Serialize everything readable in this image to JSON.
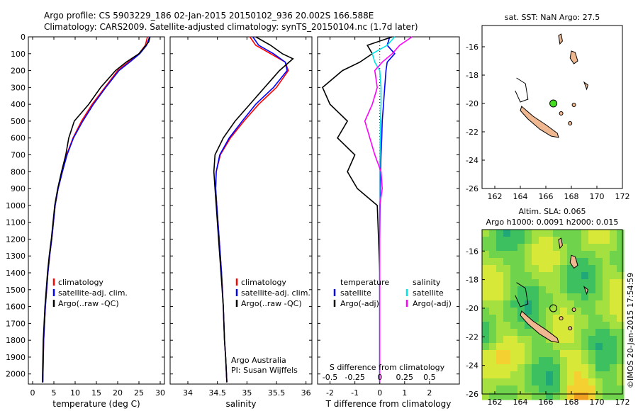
{
  "header": {
    "line1": "Argo profile: CS 5903229_186 02-Jan-2015 20150102_936 20.002S 166.588E",
    "line2": "Climatology: CARS2009. Satellite-adjusted climatology: synTS_20150104.nc (1.7d later)"
  },
  "colors": {
    "climatology": "#ff0000",
    "satellite": "#0000ff",
    "argo": "#000000",
    "satellite_salinity": "#00e5e5",
    "argo_salinity": "#ff00ff",
    "land": "#f0b890",
    "argo_marker": "#44dd22"
  },
  "chart_data": [
    {
      "type": "line",
      "xlabel": "temperature (deg C)",
      "xlim": [
        -1,
        31
      ],
      "ylim": [
        0,
        2060
      ],
      "xticks": [
        0,
        5,
        10,
        15,
        20,
        25,
        30
      ],
      "yticks": [
        0,
        100,
        200,
        300,
        400,
        500,
        600,
        700,
        800,
        900,
        1000,
        1100,
        1200,
        1300,
        1400,
        1500,
        1600,
        1700,
        1800,
        1900,
        2000
      ],
      "y_reversed": true,
      "legend": [
        "climatology",
        "satellite-adj. clim.",
        "Argo(..raw -QC)"
      ],
      "series": [
        {
          "name": "climatology",
          "color": "climatology",
          "x": [
            27.0,
            26.5,
            25.0,
            22.5,
            20.0,
            17.0,
            14.0,
            11.5,
            9.5,
            8.0,
            7.0,
            6.0,
            5.3,
            4.5,
            4.0,
            3.6,
            3.3,
            3.0,
            2.8,
            2.6,
            2.4
          ],
          "y": [
            0,
            50,
            100,
            150,
            200,
            300,
            400,
            500,
            600,
            700,
            800,
            900,
            1000,
            1200,
            1300,
            1400,
            1500,
            1600,
            1700,
            1800,
            2050
          ]
        },
        {
          "name": "satellite-adj. clim.",
          "color": "satellite",
          "x": [
            27.5,
            26.8,
            25.2,
            22.8,
            20.3,
            17.2,
            14.3,
            11.8,
            9.6,
            8.1,
            7.0,
            6.0,
            5.3,
            4.5,
            4.0,
            3.6,
            3.3,
            3.0,
            2.8,
            2.6,
            2.4
          ],
          "y": [
            0,
            50,
            100,
            150,
            200,
            300,
            400,
            500,
            600,
            700,
            800,
            900,
            1000,
            1200,
            1300,
            1400,
            1500,
            1600,
            1700,
            1800,
            2050
          ]
        },
        {
          "name": "Argo(..raw -QC)",
          "color": "argo",
          "x": [
            27.6,
            27.3,
            25.0,
            22.0,
            19.5,
            16.0,
            13.2,
            9.8,
            8.5,
            7.8,
            6.8,
            5.9,
            5.2,
            4.4,
            3.9,
            3.5,
            3.2,
            2.9,
            2.7,
            2.5,
            2.3
          ],
          "y": [
            0,
            30,
            100,
            150,
            200,
            300,
            400,
            500,
            600,
            700,
            800,
            900,
            1000,
            1200,
            1300,
            1400,
            1500,
            1600,
            1700,
            1800,
            2050
          ]
        }
      ]
    },
    {
      "type": "line",
      "xlabel": "salinity",
      "xlim": [
        33.7,
        36.1
      ],
      "ylim": [
        0,
        2060
      ],
      "xticks": [
        34,
        34.5,
        35,
        35.5,
        36
      ],
      "y_reversed": true,
      "legend": [
        "climatology",
        "satellite-adj. clim.",
        "Argo(..raw -QC)"
      ],
      "annotation": [
        "Argo Australia",
        "PI: Susan Wijffels"
      ],
      "series": [
        {
          "name": "climatology",
          "color": "climatology",
          "x": [
            35.05,
            35.15,
            35.4,
            35.65,
            35.7,
            35.5,
            35.2,
            34.95,
            34.72,
            34.55,
            34.48,
            34.47,
            34.49,
            34.53,
            34.57,
            34.6,
            34.62,
            34.64,
            34.66
          ],
          "y": [
            0,
            50,
            100,
            150,
            200,
            300,
            400,
            500,
            600,
            700,
            800,
            900,
            1000,
            1200,
            1400,
            1600,
            1800,
            1900,
            2050
          ]
        },
        {
          "name": "satellite-adj. clim.",
          "color": "satellite",
          "x": [
            35.1,
            35.2,
            35.45,
            35.65,
            35.68,
            35.45,
            35.15,
            34.92,
            34.7,
            34.54,
            34.48,
            34.47,
            34.49,
            34.53,
            34.57,
            34.6,
            34.62,
            34.64,
            34.66
          ],
          "y": [
            0,
            50,
            100,
            150,
            200,
            300,
            400,
            500,
            600,
            700,
            800,
            900,
            1000,
            1200,
            1400,
            1600,
            1800,
            1900,
            2050
          ]
        },
        {
          "name": "Argo(..raw -QC)",
          "color": "argo",
          "x": [
            35.15,
            35.4,
            35.6,
            35.78,
            35.55,
            35.3,
            35.05,
            34.8,
            34.6,
            34.46,
            34.44,
            34.46,
            34.48,
            34.52,
            34.56,
            34.6,
            34.62,
            34.64,
            34.66
          ],
          "y": [
            0,
            50,
            100,
            130,
            200,
            300,
            400,
            500,
            600,
            700,
            800,
            900,
            1000,
            1200,
            1400,
            1600,
            1800,
            1900,
            2050
          ]
        }
      ]
    },
    {
      "type": "line",
      "xlabel": "T difference from climatology",
      "xlabel_top": "S difference from climatology",
      "xlim": [
        -2.5,
        3.2
      ],
      "ylim": [
        0,
        2060
      ],
      "xticks": [
        -2,
        -1,
        0,
        1,
        2
      ],
      "xticks_top": [
        "-0.5",
        "-0.25",
        "0",
        "0.25",
        "0.5"
      ],
      "y_reversed": true,
      "legend_headers": [
        "temperature",
        "salinity"
      ],
      "legend": [
        "satellite",
        "Argo(-adj)",
        "satellite",
        "Argo(-adj)"
      ],
      "series": [
        {
          "name": "satellite",
          "color": "satellite",
          "x": [
            0.4,
            0.3,
            0.6,
            0.3,
            0.25,
            0.2,
            0.15,
            0.1,
            0.08,
            0.05,
            0.03,
            0.02,
            0.01,
            0,
            0,
            0,
            0
          ],
          "y": [
            0,
            50,
            100,
            150,
            200,
            300,
            400,
            500,
            600,
            700,
            800,
            900,
            1000,
            1200,
            1400,
            1600,
            2050
          ]
        },
        {
          "name": "Argo(-adj)",
          "color": "argo",
          "x": [
            0.5,
            -0.5,
            -0.3,
            -0.8,
            -1.5,
            -2.3,
            -2.0,
            -1.3,
            -1.7,
            -1.0,
            -1.3,
            -0.9,
            -0.1,
            -0.05,
            0,
            0,
            0
          ],
          "y": [
            0,
            50,
            100,
            150,
            200,
            300,
            400,
            500,
            600,
            700,
            800,
            900,
            1000,
            1200,
            1400,
            1600,
            2050
          ]
        },
        {
          "name": "satellite",
          "color": "satellite_salinity",
          "x": [
            0.6,
            0.3,
            -0.3,
            -0.2,
            0,
            0.05,
            0.05,
            0.03,
            0.02,
            0.01,
            0,
            0,
            0,
            0,
            0,
            0,
            0
          ],
          "y": [
            0,
            50,
            100,
            150,
            200,
            300,
            400,
            500,
            600,
            700,
            800,
            900,
            1000,
            1200,
            1400,
            1600,
            2050
          ]
        },
        {
          "name": "Argo(-adj)",
          "color": "argo_salinity",
          "x": [
            1.3,
            0.8,
            0.5,
            0.1,
            -0.2,
            -0.1,
            -0.3,
            -0.6,
            -0.4,
            -0.2,
            0.05,
            0.1,
            0,
            0,
            0,
            0,
            0
          ],
          "y": [
            0,
            50,
            100,
            150,
            200,
            300,
            400,
            500,
            600,
            700,
            800,
            900,
            1000,
            1200,
            1400,
            1600,
            2050
          ]
        }
      ]
    },
    {
      "type": "scatter",
      "title": "sat. SST: NaN Argo: 27.5",
      "xlim": [
        161,
        172
      ],
      "ylim": [
        -26,
        -14.5
      ],
      "xticks": [
        162,
        164,
        166,
        168,
        170,
        172
      ],
      "yticks": [
        -16,
        -18,
        -20,
        -22,
        -24,
        -26
      ],
      "argo_position": {
        "lon": 166.588,
        "lat": -20.002
      }
    },
    {
      "type": "heatmap",
      "title": "Altim. SLA: 0.065",
      "subtitle": "Argo h1000: 0.0091 h2000: 0.015",
      "xlim": [
        161,
        172
      ],
      "ylim": [
        -26,
        -14.5
      ],
      "xticks": [
        162,
        164,
        166,
        168,
        170,
        172
      ],
      "yticks": [
        -16,
        -18,
        -20,
        -22,
        -24,
        -26
      ],
      "argo_position": {
        "lon": 166.588,
        "lat": -20.002
      }
    }
  ],
  "credit": "©IMOS 20-Jan-2015 17:54:59"
}
